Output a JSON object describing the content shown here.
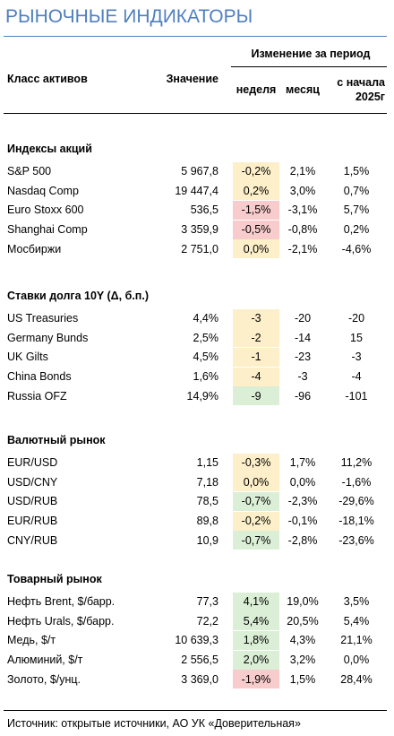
{
  "title": "РЫНОЧНЫЕ ИНДИКАТОРЫ",
  "header": {
    "asset_class": "Класс активов",
    "value": "Значение",
    "period": "Изменение за период",
    "week": "неделя",
    "month": "месяц",
    "ytd_line1": "с начала",
    "ytd_line2": "2025г"
  },
  "sections": [
    {
      "title": "Индексы акций",
      "rows": [
        {
          "cells": [
            "S&P 500",
            "5 967,8",
            "-0,2%",
            "2,1%",
            "1,5%"
          ],
          "highlight": "#fcefc9"
        },
        {
          "cells": [
            "Nasdaq Comp",
            "19 447,4",
            "0,2%",
            "3,0%",
            "0,7%"
          ],
          "highlight": "#fcefc9"
        },
        {
          "cells": [
            "Euro Stoxx 600",
            "536,5",
            "-1,5%",
            "-3,1%",
            "5,7%"
          ],
          "highlight": "#f8cccc"
        },
        {
          "cells": [
            "Shanghai Comp",
            "3 359,9",
            "-0,5%",
            "-0,8%",
            "0,2%"
          ],
          "highlight": "#f8cccc"
        },
        {
          "cells": [
            "Мосбиржи",
            "2 751,0",
            "0,0%",
            "-2,1%",
            "-4,6%"
          ],
          "highlight": "#fcefc9"
        }
      ]
    },
    {
      "title": "Ставки долга 10Y (Δ, б.п.)",
      "rows": [
        {
          "cells": [
            "US Treasuries",
            "4,4%",
            "-3",
            "-20",
            "-20"
          ],
          "highlight": "#fcefc9"
        },
        {
          "cells": [
            "Germany Bunds",
            "2,5%",
            "-2",
            "-14",
            "15"
          ],
          "highlight": "#fcefc9"
        },
        {
          "cells": [
            "UK Gilts",
            "4,5%",
            "-1",
            "-23",
            "-3"
          ],
          "highlight": "#fcefc9"
        },
        {
          "cells": [
            "China Bonds",
            "1,6%",
            "-4",
            "-3",
            "-4"
          ],
          "highlight": "#fcefc9"
        },
        {
          "cells": [
            "Russia OFZ",
            "14,9%",
            "-9",
            "-96",
            "-101"
          ],
          "highlight": "#dbeed6"
        }
      ]
    },
    {
      "title": "Валютный рынок",
      "rows": [
        {
          "cells": [
            "EUR/USD",
            "1,15",
            "-0,3%",
            "1,7%",
            "11,2%"
          ],
          "highlight": "#fcefc9"
        },
        {
          "cells": [
            "USD/CNY",
            "7,18",
            "0,0%",
            "0,0%",
            "-1,6%"
          ],
          "highlight": "#fcefc9"
        },
        {
          "cells": [
            "USD/RUB",
            "78,5",
            "-0,7%",
            "-2,3%",
            "-29,6%"
          ],
          "highlight": "#dbeed6"
        },
        {
          "cells": [
            "EUR/RUB",
            "89,8",
            "-0,2%",
            "-0,1%",
            "-18,1%"
          ],
          "highlight": "#fcefc9"
        },
        {
          "cells": [
            "CNY/RUB",
            "10,9",
            "-0,7%",
            "-2,8%",
            "-23,6%"
          ],
          "highlight": "#dbeed6"
        }
      ]
    },
    {
      "title": "Товарный рынок",
      "rows": [
        {
          "cells": [
            "Нефть Brent, $/барр.",
            "77,3",
            "4,1%",
            "19,0%",
            "3,5%"
          ],
          "highlight": "#dbeed6"
        },
        {
          "cells": [
            "Нефть Urals, $/барр.",
            "72,2",
            "5,4%",
            "20,5%",
            "5,4%"
          ],
          "highlight": "#dbeed6"
        },
        {
          "cells": [
            "Медь, $/т",
            "10 639,3",
            "1,8%",
            "4,3%",
            "21,1%"
          ],
          "highlight": "#dbeed6"
        },
        {
          "cells": [
            "Алюминий, $/т",
            "2 556,5",
            "2,0%",
            "3,2%",
            "0,0%"
          ],
          "highlight": "#dbeed6"
        },
        {
          "cells": [
            "Золото, $/унц.",
            "3 369,0",
            "-1,9%",
            "1,5%",
            "28,4%"
          ],
          "highlight": "#f8cccc"
        }
      ]
    }
  ],
  "source": "Источник: открытые источники, АО УК «Доверительная»"
}
